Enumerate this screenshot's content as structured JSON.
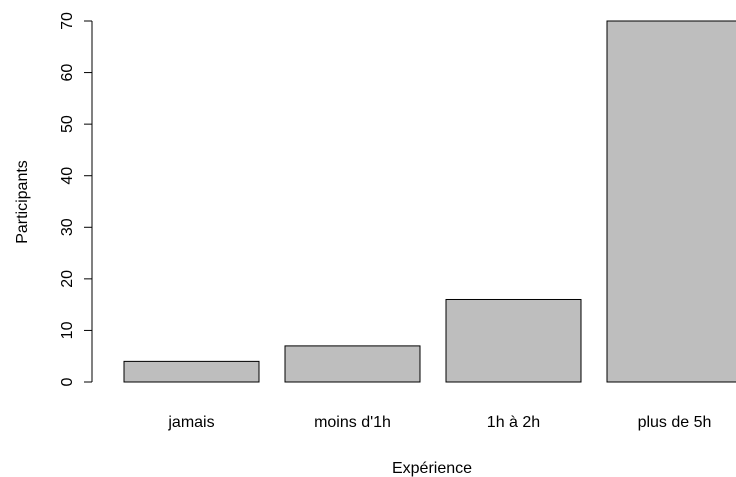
{
  "chart_data": {
    "type": "bar",
    "categories": [
      "jamais",
      "moins d'1h",
      "1h à 2h",
      "plus de 5h"
    ],
    "values": [
      4,
      7,
      16,
      70
    ],
    "title": "",
    "xlabel": "Expérience",
    "ylabel": "Participants",
    "ylim": [
      0,
      70
    ],
    "yticks": [
      0,
      10,
      20,
      30,
      40,
      50,
      60,
      70
    ],
    "grid": false,
    "legend": "none",
    "bar_color": "#bebebe",
    "bar_border": "#000000"
  }
}
